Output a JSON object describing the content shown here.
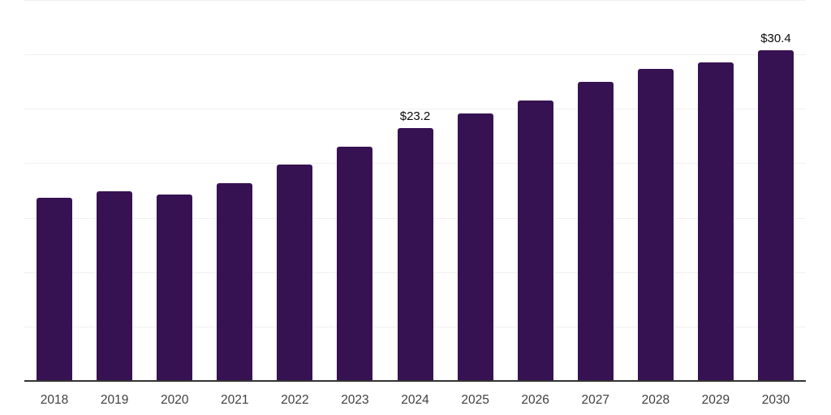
{
  "chart_data": {
    "type": "bar",
    "title": "",
    "xlabel": "",
    "ylabel": "",
    "categories": [
      "2018",
      "2019",
      "2020",
      "2021",
      "2022",
      "2023",
      "2024",
      "2025",
      "2026",
      "2027",
      "2028",
      "2029",
      "2030"
    ],
    "values": [
      16.8,
      17.4,
      17.1,
      18.2,
      19.9,
      21.5,
      23.2,
      24.6,
      25.8,
      27.5,
      28.7,
      29.3,
      30.4
    ],
    "data_labels": [
      {
        "category": "2024",
        "text": "$23.2"
      },
      {
        "category": "2030",
        "text": "$30.4"
      }
    ],
    "ylim": [
      0,
      35
    ],
    "grid_values": [
      5,
      10,
      15,
      20,
      25,
      30,
      35
    ],
    "grid_on": true,
    "legend": "none",
    "colors": {
      "bar": "#371252",
      "grid": "#f0f0f0",
      "axis": "#333333",
      "value_label": "#0a0a0a",
      "tick_label": "#3f3f3f",
      "background": "#ffffff"
    }
  }
}
